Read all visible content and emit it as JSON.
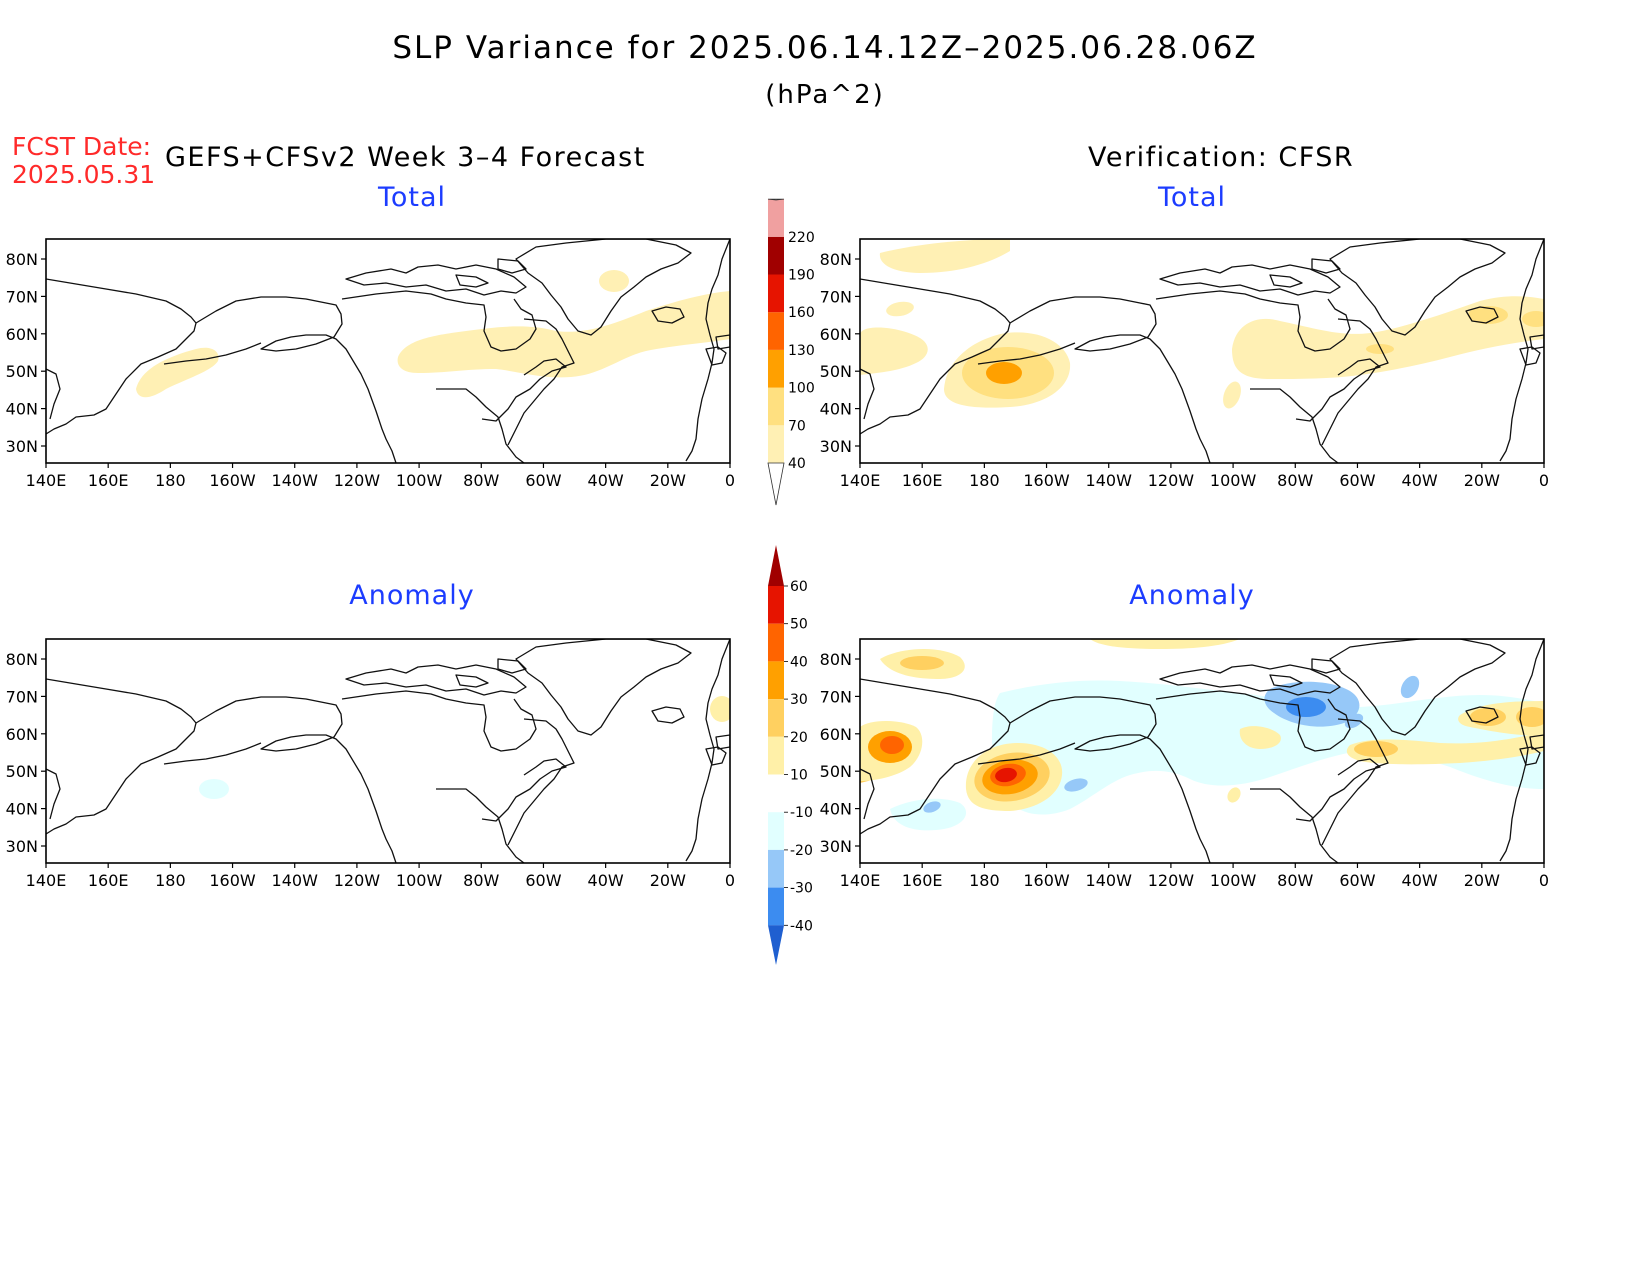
{
  "header": {
    "title": "SLP Variance for 2025.06.14.12Z–2025.06.28.06Z",
    "units": "(hPa^2)",
    "fcst_label": "FCST Date:",
    "fcst_date": "2025.05.31",
    "model": "GEFS+CFSv2 Week 3–4 Forecast",
    "verification": "Verification: CFSR"
  },
  "panels": [
    {
      "id": "fcst-total",
      "title": "Total"
    },
    {
      "id": "verif-total",
      "title": "Total"
    },
    {
      "id": "fcst-anomaly",
      "title": "Anomaly"
    },
    {
      "id": "verif-anomaly",
      "title": "Anomaly"
    }
  ],
  "axes": {
    "lon_labels": [
      "140E",
      "160E",
      "180",
      "160W",
      "140W",
      "120W",
      "100W",
      "80W",
      "60W",
      "40W",
      "20W",
      "0"
    ],
    "lat_labels": [
      "80N",
      "70N",
      "60N",
      "50N",
      "40N",
      "30N"
    ]
  },
  "colorbars": {
    "total": {
      "levels": [
        "40",
        "70",
        "100",
        "130",
        "160",
        "190",
        "220"
      ],
      "colors": [
        "#fff0b4",
        "#ffe080",
        "#ffa000",
        "#ff6400",
        "#e61400",
        "#a00000",
        "#f0a0a0",
        "#fde0e0"
      ]
    },
    "anomaly": {
      "levels": [
        "-40",
        "-30",
        "-20",
        "-10",
        "10",
        "20",
        "30",
        "40",
        "50",
        "60"
      ],
      "colors": [
        "#1f5fd0",
        "#3c8cf0",
        "#96c8f8",
        "#e1ffff",
        "#ffffff",
        "#fff0a8",
        "#ffd060",
        "#ffa000",
        "#ff6400",
        "#e61400",
        "#a00000"
      ]
    }
  },
  "chart_data": [
    {
      "type": "heatmap",
      "panel": "fcst-total",
      "title": "Total",
      "x_range": [
        "140E",
        "0"
      ],
      "y_range": [
        "25N",
        "85N"
      ],
      "regions": [
        {
          "center": [
            "175W",
            "47N"
          ],
          "level": "40-70"
        },
        {
          "center": [
            "70W",
            "53N"
          ],
          "level": "40-70"
        },
        {
          "center": [
            "40W",
            "75N"
          ],
          "level": "40-70"
        }
      ]
    },
    {
      "type": "heatmap",
      "panel": "verif-total",
      "title": "Total",
      "x_range": [
        "140E",
        "0"
      ],
      "y_range": [
        "25N",
        "85N"
      ],
      "regions": [
        {
          "center": [
            "172W",
            "48N"
          ],
          "level": "70-100"
        },
        {
          "center": [
            "70W",
            "55N"
          ],
          "level": "40-70"
        },
        {
          "center": [
            "10W",
            "60N"
          ],
          "level": "70-100"
        }
      ]
    },
    {
      "type": "heatmap",
      "panel": "fcst-anomaly",
      "title": "Anomaly",
      "x_range": [
        "140E",
        "0"
      ],
      "y_range": [
        "25N",
        "85N"
      ],
      "regions": [
        {
          "center": [
            "165W",
            "45N"
          ],
          "level": "-20 to -10"
        }
      ]
    },
    {
      "type": "heatmap",
      "panel": "verif-anomaly",
      "title": "Anomaly",
      "x_range": [
        "140E",
        "0"
      ],
      "y_range": [
        "25N",
        "85N"
      ],
      "regions": [
        {
          "center": [
            "172W",
            "48N"
          ],
          "level": "50-60"
        },
        {
          "center": [
            "148E",
            "56N"
          ],
          "level": "40-50"
        },
        {
          "center": [
            "85W",
            "68N"
          ],
          "level": "-30 to -20"
        }
      ]
    }
  ]
}
